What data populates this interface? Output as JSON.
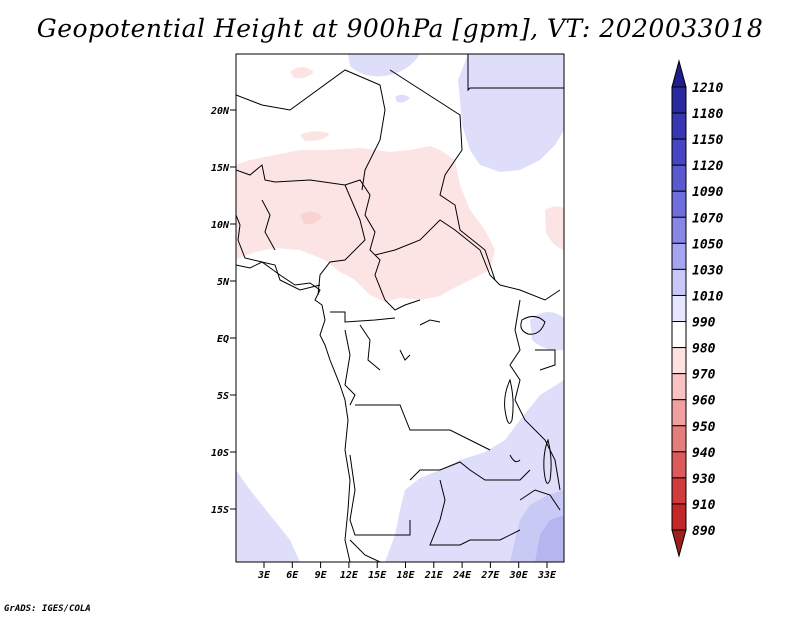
{
  "title": "Geopotential Height at 900hPa [gpm], VT: 2020033018",
  "credit": "GrADS: IGES/COLA",
  "map": {
    "lat_labels": [
      "20N",
      "15N",
      "10N",
      "5N",
      "EQ",
      "5S",
      "10S",
      "15S"
    ],
    "lon_labels": [
      "3E",
      "6E",
      "9E",
      "12E",
      "15E",
      "18E",
      "21E",
      "24E",
      "27E",
      "30E",
      "33E"
    ],
    "regions": {
      "warm": "pink-low-heights-sahel",
      "cool_ne": "blue-high-heights-northeast",
      "cool_s": "blue-high-heights-south",
      "cool_se": "purple-high-heights-southeast"
    }
  },
  "colorbar": {
    "labels": [
      "1210",
      "1180",
      "1150",
      "1120",
      "1090",
      "1070",
      "1050",
      "1030",
      "1010",
      "990",
      "980",
      "970",
      "960",
      "950",
      "940",
      "930",
      "910",
      "890"
    ],
    "colors": [
      "#1e1e8c",
      "#2a2aa0",
      "#3737b4",
      "#4646c3",
      "#5a5ad0",
      "#6e6edc",
      "#8787e6",
      "#a5a5f0",
      "#c8c8fa",
      "#e6e6ff",
      "#ffffff",
      "#ffe1e1",
      "#fac3c3",
      "#f0a0a0",
      "#e67d7d",
      "#dc5a5a",
      "#d03c3c",
      "#c32828",
      "#a01e1e"
    ]
  }
}
